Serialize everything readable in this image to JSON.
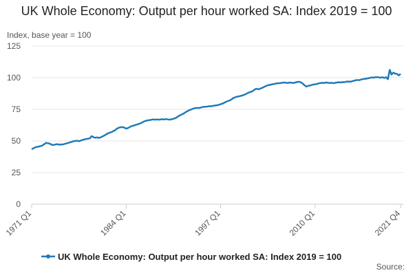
{
  "chart_data": {
    "type": "line",
    "title": "UK Whole Economy: Output per hour worked SA: Index 2019 = 100",
    "y_axis_label": "Index, base year = 100",
    "source": "Source:",
    "categories": [
      "1971 Q1",
      null,
      null,
      null,
      null,
      null,
      null,
      null,
      null,
      null,
      null,
      null,
      null,
      null,
      null,
      null,
      null,
      null,
      null,
      null,
      null,
      null,
      null,
      null,
      null,
      null,
      null,
      null,
      null,
      null,
      null,
      null,
      null,
      null,
      null,
      null,
      null,
      null,
      null,
      null,
      null,
      null,
      null,
      null,
      null,
      null,
      null,
      null,
      null,
      null,
      null,
      null,
      "1984 Q1",
      null,
      null,
      null,
      null,
      null,
      null,
      null,
      null,
      null,
      null,
      null,
      null,
      null,
      null,
      null,
      null,
      null,
      null,
      null,
      null,
      null,
      null,
      null,
      null,
      null,
      null,
      null,
      null,
      null,
      null,
      null,
      null,
      null,
      null,
      null,
      null,
      null,
      null,
      null,
      null,
      null,
      null,
      null,
      null,
      null,
      null,
      null,
      null,
      null,
      null,
      null,
      "1997 Q1",
      null,
      null,
      null,
      null,
      null,
      null,
      null,
      null,
      null,
      null,
      null,
      null,
      null,
      null,
      null,
      null,
      null,
      null,
      null,
      null,
      null,
      null,
      null,
      null,
      null,
      null,
      null,
      null,
      null,
      null,
      null,
      null,
      null,
      null,
      null,
      null,
      null,
      null,
      null,
      null,
      null,
      null,
      null,
      null,
      null,
      null,
      null,
      null,
      null,
      null,
      null,
      "2010 Q1",
      null,
      null,
      null,
      null,
      null,
      null,
      null,
      null,
      null,
      null,
      null,
      null,
      null,
      null,
      null,
      null,
      null,
      null,
      null,
      null,
      null,
      null,
      null,
      null,
      null,
      null,
      null,
      null,
      null,
      null,
      null,
      null,
      null,
      null,
      null,
      null,
      null,
      null,
      null,
      null,
      null,
      null,
      null,
      null,
      null,
      null,
      "2021 Q4"
    ],
    "series": [
      {
        "name": "UK Whole Economy: Output per hour worked SA: Index 2019 = 100",
        "color": "#1f7ab7",
        "values": [
          43.5,
          44.2,
          45.0,
          45.3,
          45.6,
          45.9,
          46.5,
          47.5,
          48.5,
          48.2,
          47.8,
          47.0,
          46.8,
          47.2,
          47.5,
          47.0,
          47.3,
          47.2,
          47.6,
          48.0,
          48.4,
          48.8,
          49.3,
          49.8,
          50.0,
          50.2,
          49.8,
          50.3,
          50.8,
          51.2,
          51.5,
          51.8,
          52.0,
          53.8,
          53.0,
          52.5,
          52.8,
          52.4,
          52.8,
          53.6,
          54.3,
          55.2,
          56.0,
          56.6,
          57.0,
          57.8,
          58.6,
          59.8,
          60.5,
          60.8,
          61.0,
          60.5,
          59.8,
          60.2,
          61.0,
          61.8,
          62.0,
          62.6,
          63.0,
          63.5,
          64.0,
          64.8,
          65.5,
          66.0,
          66.3,
          66.5,
          66.8,
          67.0,
          66.8,
          67.0,
          66.8,
          67.0,
          67.2,
          67.0,
          67.3,
          67.0,
          66.8,
          67.2,
          67.5,
          68.0,
          68.8,
          69.8,
          70.5,
          71.2,
          72.0,
          73.0,
          73.8,
          74.5,
          75.0,
          75.6,
          76.0,
          76.2,
          76.0,
          76.4,
          76.8,
          77.0,
          77.0,
          77.3,
          77.5,
          77.4,
          77.8,
          78.0,
          78.2,
          78.6,
          79.0,
          79.5,
          80.2,
          81.0,
          81.5,
          82.0,
          82.8,
          84.0,
          84.5,
          85.0,
          85.2,
          85.6,
          86.0,
          86.5,
          87.2,
          88.0,
          88.5,
          89.0,
          89.8,
          91.0,
          91.2,
          90.8,
          91.5,
          92.0,
          92.8,
          93.5,
          94.0,
          94.3,
          94.6,
          94.9,
          95.2,
          95.6,
          95.6,
          95.8,
          96.0,
          96.2,
          96.0,
          95.8,
          96.2,
          96.0,
          95.8,
          96.2,
          96.5,
          96.8,
          96.4,
          95.5,
          94.2,
          93.0,
          93.5,
          93.8,
          94.2,
          94.6,
          94.8,
          95.0,
          95.6,
          95.8,
          96.0,
          95.8,
          96.2,
          96.0,
          95.8,
          96.0,
          95.6,
          96.0,
          96.2,
          96.4,
          96.2,
          96.5,
          96.4,
          96.8,
          97.0,
          96.8,
          97.0,
          97.5,
          97.8,
          98.2,
          98.0,
          98.4,
          98.8,
          99.0,
          99.2,
          99.5,
          99.8,
          100.2,
          100.0,
          100.3,
          100.5,
          100.2,
          100.0,
          100.4,
          99.8,
          100.4,
          98.8,
          106.2,
          102.5,
          104.0,
          103.2,
          103.0,
          101.8,
          103.0
        ]
      }
    ],
    "ylim": [
      0,
      125
    ],
    "yticks": [
      0,
      25,
      50,
      75,
      100,
      125
    ],
    "grid": true
  }
}
